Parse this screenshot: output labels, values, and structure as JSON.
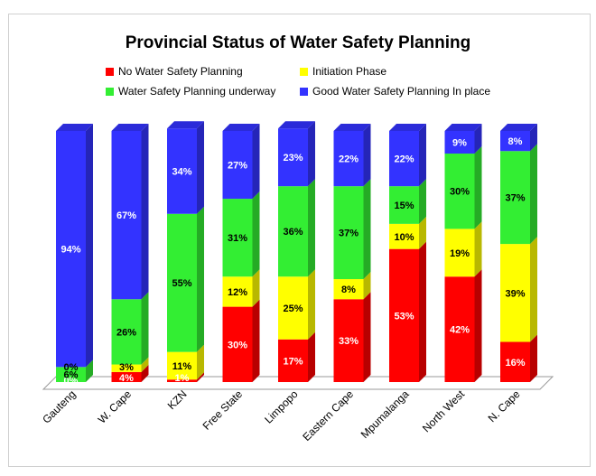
{
  "chart_data": {
    "type": "bar",
    "stacked": true,
    "percent_stacked": true,
    "three_d": true,
    "title": "Provincial Status of Water Safety Planning",
    "xlabel": "",
    "ylabel": "",
    "ylim": [
      0,
      100
    ],
    "grid": false,
    "legend_position": "top",
    "categories": [
      "Gauteng",
      "W. Cape",
      "KZN",
      "Free State",
      "Limpopo",
      "Eastern Cape",
      "Mpumalanga",
      "North West",
      "N. Cape"
    ],
    "series": [
      {
        "name": "No Water Safety Planning",
        "color": "#ff0000",
        "values": [
          0,
          4,
          1,
          30,
          17,
          33,
          53,
          42,
          16
        ]
      },
      {
        "name": "Initiation Phase",
        "color": "#ffff00",
        "values": [
          0,
          3,
          11,
          12,
          25,
          8,
          10,
          19,
          39
        ]
      },
      {
        "name": "Water Safety Planning underway",
        "color": "#33ee33",
        "values": [
          6,
          26,
          55,
          31,
          36,
          37,
          15,
          30,
          37
        ]
      },
      {
        "name": "Good Water Safety Planning In place",
        "color": "#3333ff",
        "values": [
          94,
          67,
          34,
          27,
          23,
          22,
          22,
          9,
          8
        ]
      }
    ]
  }
}
